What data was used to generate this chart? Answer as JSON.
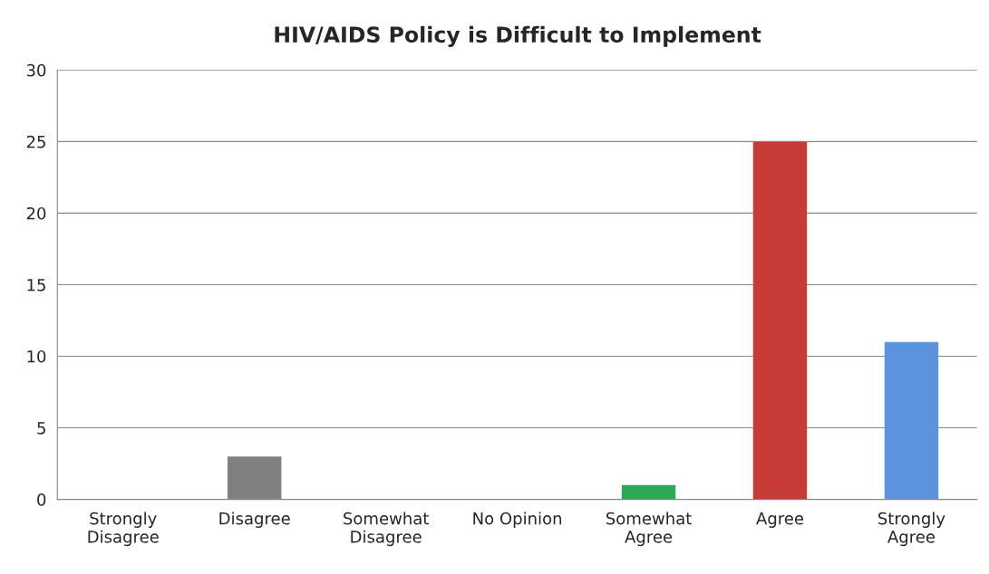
{
  "chart_data": {
    "type": "bar",
    "title": "HIV/AIDS Policy is Difficult to Implement",
    "categories": [
      "Strongly\nDisagree",
      "Disagree",
      "Somewhat\nDisagree",
      "No Opinion",
      "Somewhat\nAgree",
      "Agree",
      "Strongly\nAgree"
    ],
    "values": [
      0,
      3,
      0,
      0,
      1,
      25,
      11
    ],
    "colors": [
      "#808080",
      "#808080",
      "#808080",
      "#808080",
      "#2aaa55",
      "#c83a35",
      "#5b93dc"
    ],
    "ylim": [
      0,
      30
    ],
    "yticks": [
      0,
      5,
      10,
      15,
      20,
      25,
      30
    ],
    "grid": "y",
    "legend": false
  }
}
